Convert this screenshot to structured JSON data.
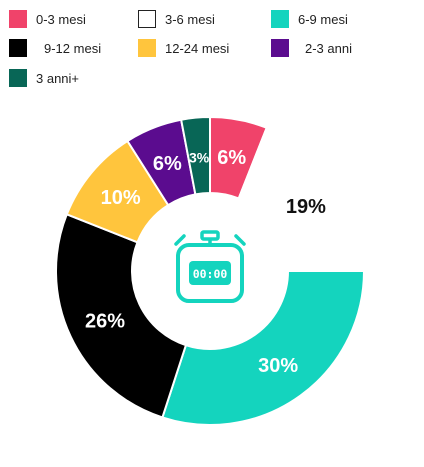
{
  "chart_data": {
    "type": "pie",
    "donut": true,
    "title": "",
    "legend_position": "top",
    "series": [
      {
        "name": "0-3 mesi",
        "value": 6,
        "label": "6%",
        "color": "#F0436A",
        "label_color": "#ffffff"
      },
      {
        "name": "3-6 mesi",
        "value": 19,
        "label": "19%",
        "color": "#FFFFFF",
        "label_color": "#111111"
      },
      {
        "name": "6-9 mesi",
        "value": 30,
        "label": "30%",
        "color": "#14D4BE",
        "label_color": "#ffffff"
      },
      {
        "name": "9-12 mesi",
        "value": 26,
        "label": "26%",
        "color": "#000000",
        "label_color": "#ffffff"
      },
      {
        "name": "12-24 mesi",
        "value": 10,
        "label": "10%",
        "color": "#FFC53D",
        "label_color": "#ffffff"
      },
      {
        "name": "2-3 anni",
        "value": 6,
        "label": "6%",
        "color": "#5B0C8F",
        "label_color": "#ffffff"
      },
      {
        "name": "3 anni+",
        "value": 3,
        "label": "3%",
        "color": "#086656",
        "label_color": "#ffffff"
      }
    ],
    "center_icon": "stopwatch-icon",
    "center_icon_text": "00:00",
    "center_icon_color": "#14D4BE"
  }
}
